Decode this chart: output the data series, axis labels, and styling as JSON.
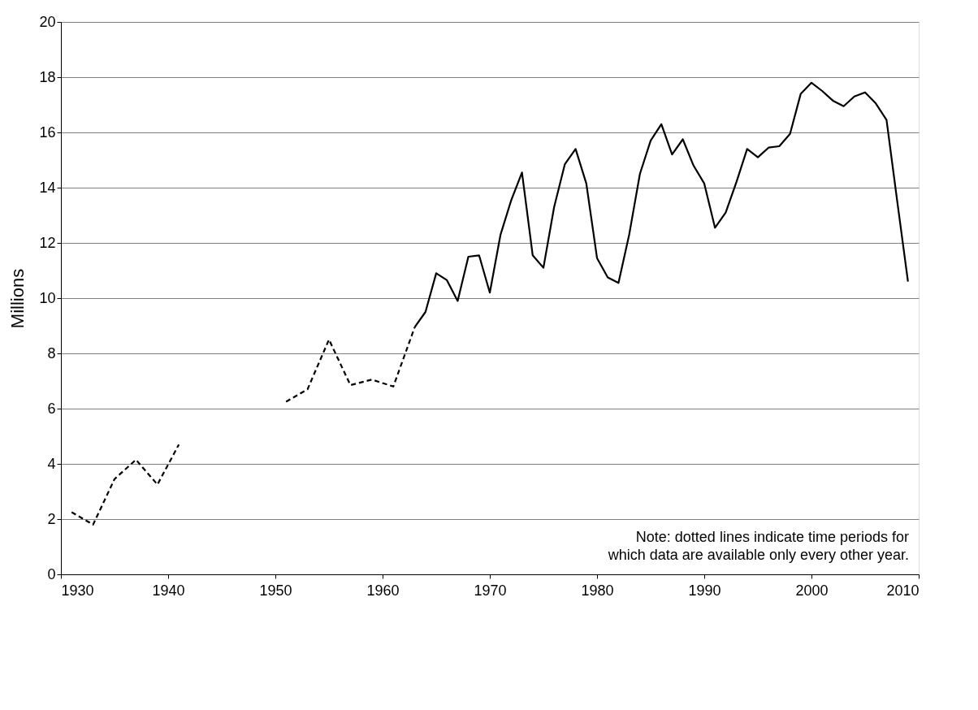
{
  "chart_data": {
    "type": "line",
    "ylabel": "Millions",
    "xlim": [
      1930,
      2010
    ],
    "xticks": [
      1930,
      1940,
      1950,
      1960,
      1970,
      1980,
      1990,
      2000,
      2010
    ],
    "ylim": [
      0,
      20
    ],
    "yticks": [
      0,
      2,
      4,
      6,
      8,
      10,
      12,
      14,
      16,
      18,
      20
    ],
    "grid": "y",
    "annotations": [
      "Note: dotted lines indicate time periods for\nwhich data are available only every other year."
    ],
    "series": [
      {
        "color": "#000000",
        "line_style": "dashed",
        "x": [
          1931,
          1933,
          1935,
          1937,
          1939,
          1941
        ],
        "values": [
          2.25,
          1.8,
          3.45,
          4.15,
          3.25,
          4.7
        ]
      },
      {
        "color": "#000000",
        "line_style": "dashed",
        "x": [
          1951,
          1953,
          1955,
          1957,
          1959,
          1961,
          1963
        ],
        "values": [
          6.25,
          6.7,
          8.5,
          6.85,
          7.05,
          6.8,
          8.95
        ]
      },
      {
        "color": "#000000",
        "line_style": "solid",
        "x": [
          1963,
          1964,
          1965,
          1966,
          1967,
          1968,
          1969,
          1970,
          1971,
          1972,
          1973,
          1974,
          1975,
          1976,
          1977,
          1978,
          1979,
          1980,
          1981,
          1982,
          1983,
          1984,
          1985,
          1986,
          1987,
          1988,
          1989,
          1990,
          1991,
          1992,
          1993,
          1994,
          1995,
          1996,
          1997,
          1998,
          1999,
          2000,
          2001,
          2002,
          2003,
          2004,
          2005,
          2006,
          2007,
          2008,
          2009
        ],
        "values": [
          8.95,
          9.5,
          10.9,
          10.65,
          9.9,
          11.5,
          11.55,
          10.2,
          12.3,
          13.55,
          14.55,
          11.55,
          11.1,
          13.3,
          14.85,
          15.4,
          14.15,
          11.45,
          10.75,
          10.55,
          12.3,
          14.5,
          15.7,
          16.3,
          15.2,
          15.75,
          14.8,
          14.15,
          12.55,
          13.1,
          14.2,
          15.4,
          15.1,
          15.45,
          15.5,
          15.95,
          17.4,
          17.8,
          17.5,
          17.15,
          16.95,
          17.3,
          17.45,
          17.05,
          16.45,
          13.5,
          10.6
        ]
      }
    ]
  }
}
